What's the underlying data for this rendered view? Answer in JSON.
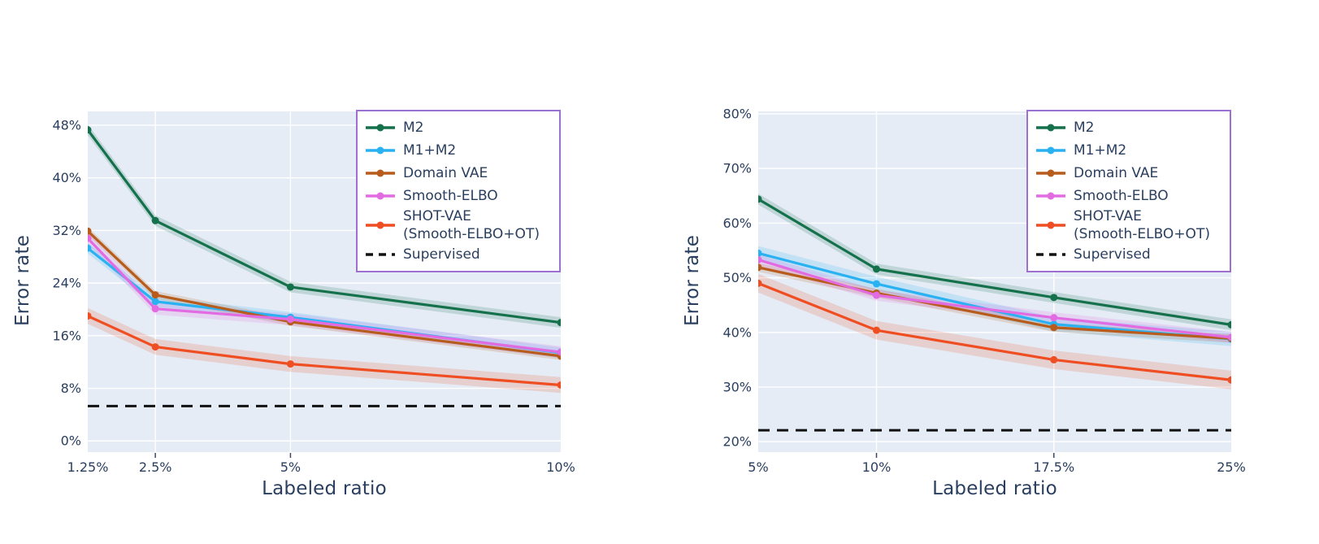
{
  "figure": {
    "background": "#ffffff",
    "text_color": "#2a3f5f",
    "plot_bg": "#e5ecf6",
    "grid_color": "#ffffff",
    "legend_border_color": "#9d6fd1"
  },
  "chart_data": [
    {
      "type": "line",
      "title": "",
      "xlabel": "Labeled ratio",
      "ylabel": "Error rate",
      "x_tick_labels": [
        "1.25%",
        "2.5%",
        "5%",
        "10%"
      ],
      "x_tick_values": [
        1.25,
        2.5,
        5,
        10
      ],
      "xlim": [
        1.25,
        10
      ],
      "y_tick_labels": [
        "0%",
        "8%",
        "16%",
        "24%",
        "32%",
        "40%",
        "48%"
      ],
      "y_tick_values": [
        0,
        8,
        16,
        24,
        32,
        40,
        48
      ],
      "ylim": [
        -1.7,
        50.1
      ],
      "grid": true,
      "legend_position": "top-right",
      "series": [
        {
          "name": "M2",
          "color": "#15714b",
          "values": [
            47.3,
            33.5,
            23.4,
            18.0
          ],
          "band": 0.8
        },
        {
          "name": "M1+M2",
          "color": "#29b1f2",
          "values": [
            29.3,
            21.2,
            18.8,
            13.4
          ],
          "band": 0.8
        },
        {
          "name": "Domain VAE",
          "color": "#b75c1c",
          "values": [
            31.9,
            22.2,
            18.1,
            12.9
          ],
          "band": 0.6
        },
        {
          "name": "Smooth-ELBO",
          "color": "#e26be2",
          "values": [
            30.8,
            20.1,
            18.5,
            13.5
          ],
          "band": 0.9
        },
        {
          "name": "SHOT-VAE\n(Smooth-ELBO+OT)",
          "color": "#ef4e23",
          "values": [
            19.0,
            14.3,
            11.7,
            8.5
          ],
          "band": 1.2
        }
      ],
      "reference_line": {
        "name": "Supervised",
        "value": 5.3,
        "color": "#111111",
        "style": "dashed"
      }
    },
    {
      "type": "line",
      "title": "",
      "xlabel": "Labeled ratio",
      "ylabel": "Error rate",
      "x_tick_labels": [
        "5%",
        "10%",
        "17.5%",
        "25%"
      ],
      "x_tick_values": [
        5,
        10,
        17.5,
        25
      ],
      "xlim": [
        5,
        25
      ],
      "y_tick_labels": [
        "20%",
        "30%",
        "40%",
        "50%",
        "60%",
        "70%",
        "80%"
      ],
      "y_tick_values": [
        20,
        30,
        40,
        50,
        60,
        70,
        80
      ],
      "ylim": [
        18.1,
        80.45
      ],
      "grid": true,
      "legend_position": "top-right",
      "series": [
        {
          "name": "M2",
          "color": "#15714b",
          "values": [
            64.4,
            51.6,
            46.4,
            41.4
          ],
          "band": 1.0
        },
        {
          "name": "M1+M2",
          "color": "#29b1f2",
          "values": [
            54.5,
            48.9,
            41.5,
            38.8
          ],
          "band": 1.3
        },
        {
          "name": "Domain VAE",
          "color": "#b75c1c",
          "values": [
            51.9,
            47.2,
            40.9,
            38.9
          ],
          "band": 0.8
        },
        {
          "name": "Smooth-ELBO",
          "color": "#e26be2",
          "values": [
            53.3,
            46.8,
            42.7,
            39.1
          ],
          "band": 1.0
        },
        {
          "name": "SHOT-VAE\n(Smooth-ELBO+OT)",
          "color": "#ef4e23",
          "values": [
            49.0,
            40.4,
            35.0,
            31.3
          ],
          "band": 1.7
        }
      ],
      "reference_line": {
        "name": "Supervised",
        "value": 22.1,
        "color": "#111111",
        "style": "dashed"
      }
    }
  ]
}
